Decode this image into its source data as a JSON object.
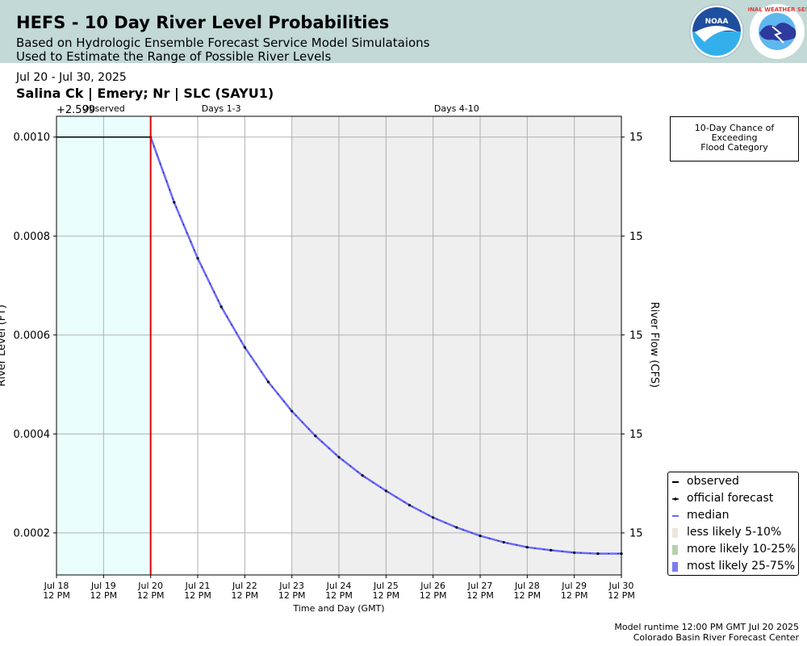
{
  "header": {
    "title": "HEFS - 10 Day River Level Probabilities",
    "subtitle1": "Based on Hydrologic Ensemble Forecast Service Model Simulataions",
    "subtitle2": "Used to Estimate the Range of Possible River Levels",
    "noaa_logo_text": "NOAA",
    "nws_logo_text": "NATIONAL WEATHER SERVICE"
  },
  "date_range": "Jul 20 - Jul 30, 2025",
  "site_title": "Salina Ck | Emery; Nr | SLC (SAYU1)",
  "flood_box": {
    "line1": "10-Day Chance of",
    "line2": "Exceeding",
    "line3": "Flood Category"
  },
  "legend": {
    "items": [
      {
        "label": "observed",
        "color": "#000000",
        "kind": "line"
      },
      {
        "label": "official forecast",
        "color": "#000000",
        "kind": "arrow"
      },
      {
        "label": "median",
        "color": "#6a6aff",
        "kind": "line"
      },
      {
        "label": "less likely 5-10%",
        "color": "#ede5d8",
        "kind": "patch"
      },
      {
        "label": "more likely 10-25%",
        "color": "#b5d2aa",
        "kind": "patch"
      },
      {
        "label": "most likely 25-75%",
        "color": "#7b7bef",
        "kind": "patch"
      }
    ]
  },
  "footer": {
    "runtime": "Model runtime 12:00 PM GMT Jul 20 2025",
    "center": "Colorado Basin River Forecast Center"
  },
  "chart_data": {
    "type": "line",
    "xlabel": "Time and Day (GMT)",
    "ylabel": "River Level (FT)",
    "y2label": "River Flow (CFS)",
    "y_offset_label": "+2.599",
    "xlim": [
      "Jul 18 12 PM",
      "Jul 30 12 PM"
    ],
    "x_ticks": [
      [
        "Jul 18",
        "12 PM"
      ],
      [
        "Jul 19",
        "12 PM"
      ],
      [
        "Jul 20",
        "12 PM"
      ],
      [
        "Jul 21",
        "12 PM"
      ],
      [
        "Jul 22",
        "12 PM"
      ],
      [
        "Jul 23",
        "12 PM"
      ],
      [
        "Jul 24",
        "12 PM"
      ],
      [
        "Jul 25",
        "12 PM"
      ],
      [
        "Jul 26",
        "12 PM"
      ],
      [
        "Jul 27",
        "12 PM"
      ],
      [
        "Jul 28",
        "12 PM"
      ],
      [
        "Jul 29",
        "12 PM"
      ],
      [
        "Jul 30",
        "12 PM"
      ]
    ],
    "ylim": [
      0.000115,
      0.001042
    ],
    "y_ticks": [
      0.0002,
      0.0004,
      0.0006,
      0.0008,
      0.001
    ],
    "y_tick_labels": [
      "0.0002",
      "0.0004",
      "0.0006",
      "0.0008",
      "0.0010"
    ],
    "y2_tick_labels": [
      "15",
      "15",
      "15",
      "15",
      "15"
    ],
    "regions": [
      {
        "label": "Observed",
        "start_day": 0,
        "end_day": 2,
        "color": "#eafffd"
      },
      {
        "label": "Days 1-3",
        "start_day": 2,
        "end_day": 5,
        "color": "#ffffff"
      },
      {
        "label": "Days 4-10",
        "start_day": 5,
        "end_day": 12,
        "color": "#efefef"
      }
    ],
    "forecast_start_day": 2,
    "grid": true,
    "series": [
      {
        "name": "observed",
        "color": "#000000",
        "x_days": [
          0,
          2
        ],
        "values": [
          0.001,
          0.001
        ]
      },
      {
        "name": "median",
        "color": "#6a6aff",
        "x_days": [
          2.0,
          2.5,
          3.0,
          3.5,
          4.0,
          4.5,
          5.0,
          5.5,
          6.0,
          6.5,
          7.0,
          7.5,
          8.0,
          8.5,
          9.0,
          9.5,
          10.0,
          10.5,
          11.0,
          11.5,
          12.0
        ],
        "values": [
          0.001,
          0.000868,
          0.000755,
          0.000657,
          0.000575,
          0.000505,
          0.000446,
          0.000396,
          0.000353,
          0.000316,
          0.000285,
          0.000256,
          0.000231,
          0.000211,
          0.000194,
          0.000181,
          0.000171,
          0.000165,
          0.00016,
          0.000158,
          0.000158
        ]
      },
      {
        "name": "official forecast",
        "color": "#000000",
        "x_days": [
          2.0,
          2.5,
          3.0,
          3.5,
          4.0,
          4.5,
          5.0,
          5.5,
          6.0,
          6.5,
          7.0,
          7.5,
          8.0,
          8.5,
          9.0,
          9.5,
          10.0,
          10.5,
          11.0,
          11.5,
          12.0
        ],
        "values": [
          0.001,
          0.000868,
          0.000755,
          0.000657,
          0.000575,
          0.000505,
          0.000446,
          0.000396,
          0.000353,
          0.000316,
          0.000285,
          0.000256,
          0.000231,
          0.000211,
          0.000194,
          0.000181,
          0.000171,
          0.000165,
          0.00016,
          0.000158,
          0.000158
        ]
      }
    ]
  }
}
